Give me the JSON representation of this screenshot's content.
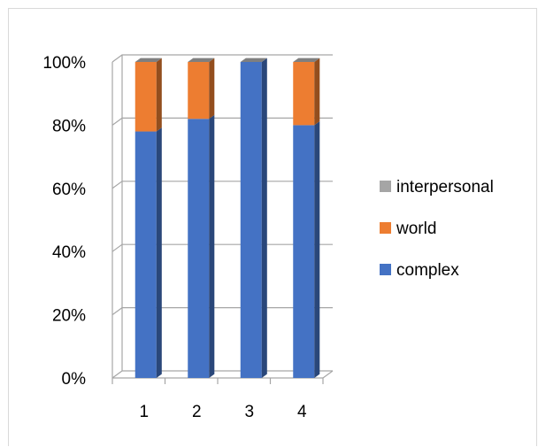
{
  "chart_data": {
    "type": "bar",
    "stacked": "percent",
    "three_d": true,
    "categories": [
      "1",
      "2",
      "3",
      "4"
    ],
    "series": [
      {
        "name": "complex",
        "values": [
          78,
          82,
          100,
          80
        ],
        "color": "#4472C4"
      },
      {
        "name": "world",
        "values": [
          22,
          18,
          0,
          20
        ],
        "color": "#ED7D31"
      },
      {
        "name": "interpersonal",
        "values": [
          0,
          0,
          0,
          0
        ],
        "color": "#A5A5A5"
      }
    ],
    "ylim": [
      0,
      100
    ],
    "yticks": [
      "0%",
      "20%",
      "40%",
      "60%",
      "80%",
      "100%"
    ],
    "grid": true,
    "legend": "right",
    "legend_order": [
      "interpersonal",
      "world",
      "complex"
    ]
  }
}
